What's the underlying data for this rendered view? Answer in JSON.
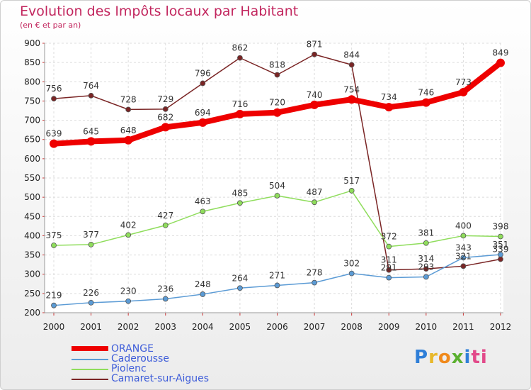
{
  "header": {
    "title": "Evolution des Impôts locaux par Habitant",
    "subtitle": "(en € et par an)"
  },
  "logo": {
    "text": "Proxiti",
    "letters": [
      "P",
      "r",
      "o",
      "x",
      "i",
      "ti"
    ]
  },
  "chart_data": {
    "type": "line",
    "x": [
      "2000",
      "2001",
      "2002",
      "2003",
      "2004",
      "2005",
      "2006",
      "2007",
      "2008",
      "2009",
      "2010",
      "2011",
      "2012"
    ],
    "ylim": [
      200,
      900
    ],
    "yticks": [
      200,
      250,
      300,
      350,
      400,
      450,
      500,
      550,
      600,
      650,
      700,
      750,
      800,
      850,
      900
    ],
    "grid": true,
    "legend_position": "bottom-left",
    "series": [
      {
        "name": "ORANGE",
        "color": "#ee0000",
        "values": [
          639,
          645,
          648,
          682,
          694,
          716,
          720,
          740,
          754,
          734,
          746,
          773,
          849
        ]
      },
      {
        "name": "Caderousse",
        "color": "#5b9bd5",
        "values": [
          219,
          226,
          230,
          236,
          248,
          264,
          271,
          278,
          302,
          291,
          293,
          343,
          351
        ]
      },
      {
        "name": "Piolenc",
        "color": "#8fdd5c",
        "values": [
          375,
          377,
          402,
          427,
          463,
          485,
          504,
          487,
          517,
          372,
          381,
          400,
          398
        ]
      },
      {
        "name": "Camaret-sur-Aigues",
        "color": "#7a2525",
        "values": [
          756,
          764,
          728,
          729,
          796,
          862,
          818,
          871,
          844,
          311,
          314,
          321,
          339
        ]
      }
    ]
  }
}
